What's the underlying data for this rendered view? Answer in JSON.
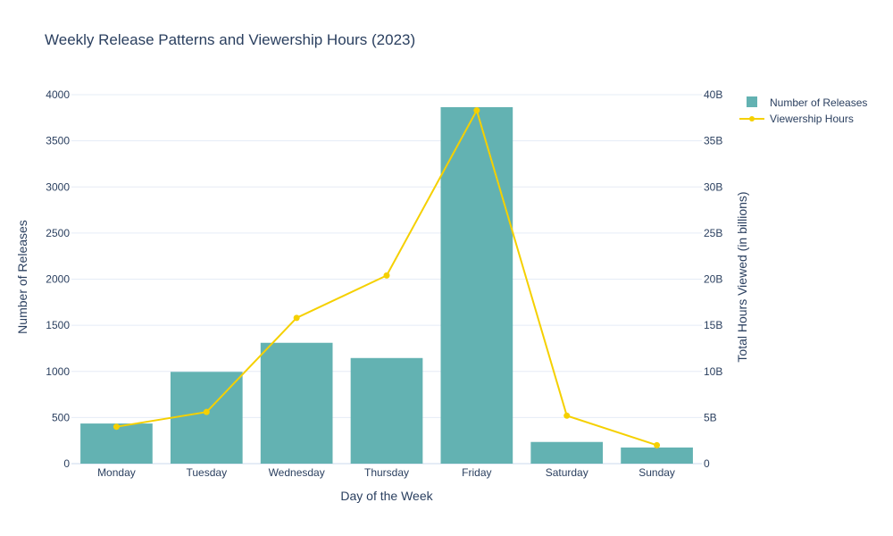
{
  "chart_data": {
    "type": "bar+line",
    "title": "Weekly Release Patterns and Viewership Hours (2023)",
    "xlabel": "Day of the Week",
    "ylabel": "Number of Releases",
    "y2label": "Total Hours Viewed (in billions)",
    "categories": [
      "Monday",
      "Tuesday",
      "Wednesday",
      "Thursday",
      "Friday",
      "Saturday",
      "Sunday"
    ],
    "ylim": [
      0,
      4000
    ],
    "yticks": [
      0,
      500,
      1000,
      1500,
      2000,
      2500,
      3000,
      3500,
      4000
    ],
    "y2lim": [
      0,
      40
    ],
    "y2ticks": [
      0,
      5,
      10,
      15,
      20,
      25,
      30,
      35,
      40
    ],
    "y2tick_labels": [
      "0",
      "5B",
      "10B",
      "15B",
      "20B",
      "25B",
      "30B",
      "35B",
      "40B"
    ],
    "series": [
      {
        "name": "Number of Releases",
        "type": "bar",
        "axis": "y",
        "color": "#63b2b2",
        "values": [
          435,
          995,
          1310,
          1145,
          3865,
          235,
          175
        ]
      },
      {
        "name": "Viewership Hours",
        "type": "line",
        "axis": "y2",
        "color": "#f5d000",
        "values": [
          4.0,
          5.6,
          15.8,
          20.4,
          38.3,
          5.2,
          2.0
        ]
      }
    ],
    "legend": "top-right"
  }
}
